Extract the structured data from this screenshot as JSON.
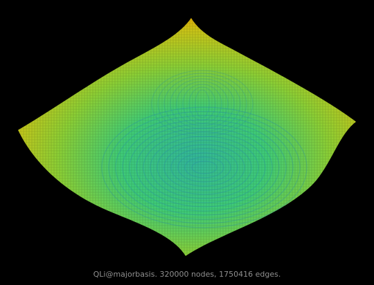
{
  "caption": "QLi@majorbasis. 320000 nodes, 1750416 edges.",
  "colors": {
    "background": "#000000",
    "edge_outer": "#e0b000",
    "edge_mid": "#9ad030",
    "edge_inner": "#40d070",
    "edge_core": "#30b8a0",
    "caption_text": "#8f8f8f"
  }
}
